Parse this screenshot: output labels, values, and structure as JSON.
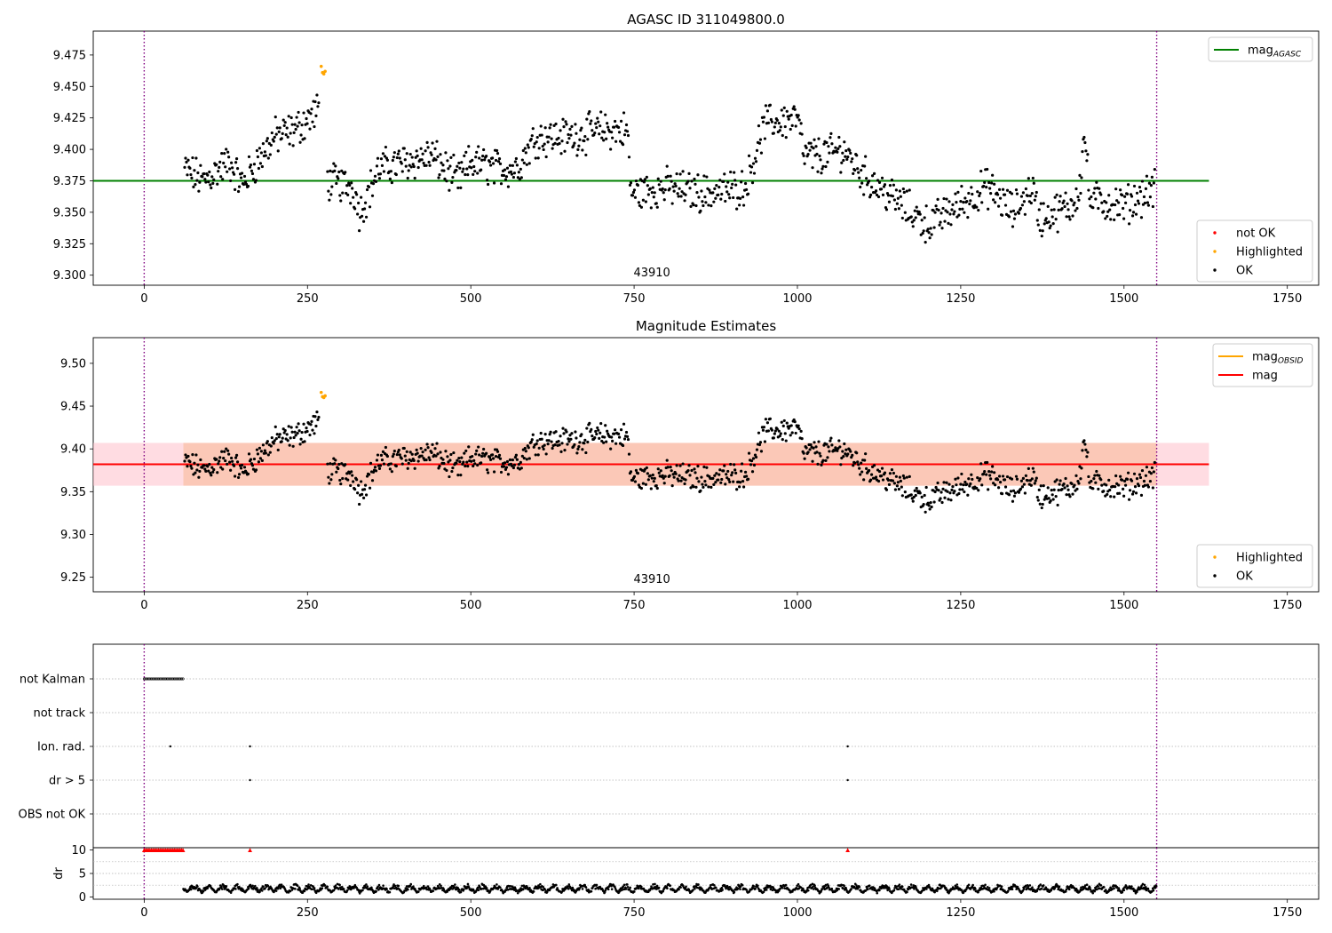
{
  "title": "AGASC ID 311049800.0",
  "colors": {
    "agasc_line": "#008000",
    "mag_line": "#ff0000",
    "obsid_line": "#ffa500",
    "band_outer": "#ffc0cb",
    "band_inner": "#f7b48c",
    "ok": "#000000",
    "highlighted": "#ffa500",
    "not_ok": "#ff0000",
    "boundary": "#800080"
  },
  "chart_data": [
    {
      "type": "scatter",
      "title": "AGASC ID 311049800.0",
      "xlim": [
        -78,
        1798
      ],
      "ylim": [
        9.292,
        9.494
      ],
      "xticks": [
        0,
        250,
        500,
        750,
        1000,
        1250,
        1500,
        1750
      ],
      "yticks": [
        9.3,
        9.325,
        9.35,
        9.375,
        9.4,
        9.425,
        9.45,
        9.475
      ],
      "ytick_labels": [
        "9.300",
        "9.325",
        "9.350",
        "9.375",
        "9.400",
        "9.425",
        "9.450",
        "9.475"
      ],
      "obsid_label": "43910",
      "obsid_label_x": 775,
      "boundaries": [
        0,
        1550
      ],
      "mag_agasc": 9.375,
      "mag_agasc_range": [
        -78,
        1630
      ],
      "legend_lines": [
        {
          "label": "mag",
          "sub": "AGASC",
          "color": "#008000"
        }
      ],
      "legend_points": [
        {
          "label": "not OK",
          "color": "#ff0000"
        },
        {
          "label": "Highlighted",
          "color": "#ffa500"
        },
        {
          "label": "OK",
          "color": "#000000"
        }
      ],
      "highlighted": [
        [
          271,
          9.466
        ],
        [
          273,
          9.461
        ],
        [
          275,
          9.46
        ],
        [
          277,
          9.462
        ]
      ],
      "grid": false
    },
    {
      "type": "scatter",
      "title": "Magnitude Estimates",
      "xlim": [
        -78,
        1798
      ],
      "ylim": [
        9.233,
        9.53
      ],
      "xticks": [
        0,
        250,
        500,
        750,
        1000,
        1250,
        1500,
        1750
      ],
      "yticks": [
        9.25,
        9.3,
        9.35,
        9.4,
        9.45,
        9.5
      ],
      "ytick_labels": [
        "9.25",
        "9.30",
        "9.35",
        "9.40",
        "9.45",
        "9.50"
      ],
      "obsid_label": "43910",
      "obsid_label_x": 775,
      "boundaries": [
        0,
        1550
      ],
      "mag": 9.382,
      "mag_band": [
        9.357,
        9.407
      ],
      "mag_obsid_band": [
        9.357,
        9.407
      ],
      "mag_obsid_band_range": [
        60,
        1550
      ],
      "band_range": [
        -78,
        1630
      ],
      "legend_lines": [
        {
          "label": "mag",
          "sub": "OBSID",
          "color": "#ffa500"
        },
        {
          "label": "mag",
          "sub": "",
          "color": "#ff0000"
        }
      ],
      "legend_points": [
        {
          "label": "Highlighted",
          "color": "#ffa500"
        },
        {
          "label": "OK",
          "color": "#000000"
        }
      ],
      "highlighted": [
        [
          271,
          9.466
        ],
        [
          273,
          9.461
        ],
        [
          275,
          9.46
        ],
        [
          277,
          9.462
        ]
      ],
      "grid": false
    },
    {
      "type": "scatter",
      "title": "",
      "xlim": [
        -78,
        1798
      ],
      "categories": [
        "not Kalman",
        "not track",
        "Ion. rad.",
        "dr > 5",
        "OBS not OK"
      ],
      "boundaries": [
        0,
        1550
      ],
      "not_kalman_range": [
        0,
        60
      ],
      "flag_points": {
        "Ion. rad.": [
          40,
          162,
          1077
        ],
        "dr > 5": [
          162,
          1077
        ]
      },
      "grid": true
    },
    {
      "type": "scatter",
      "title": "",
      "xlim": [
        -78,
        1798
      ],
      "ylim": [
        -0.5,
        10.5
      ],
      "xticks": [
        0,
        250,
        500,
        750,
        1000,
        1250,
        1500,
        1750
      ],
      "yticks": [
        0,
        5,
        10
      ],
      "ytick_labels": [
        "0",
        "5",
        "10"
      ],
      "ylabel": "dr",
      "boundaries": [
        0,
        1550
      ],
      "red_row_value": 10,
      "red_range": [
        0,
        60
      ],
      "red_points": [
        162,
        1077
      ],
      "dr_x_range": [
        60,
        1550
      ],
      "dr_range": [
        0.3,
        2.8
      ],
      "grid": true
    }
  ]
}
